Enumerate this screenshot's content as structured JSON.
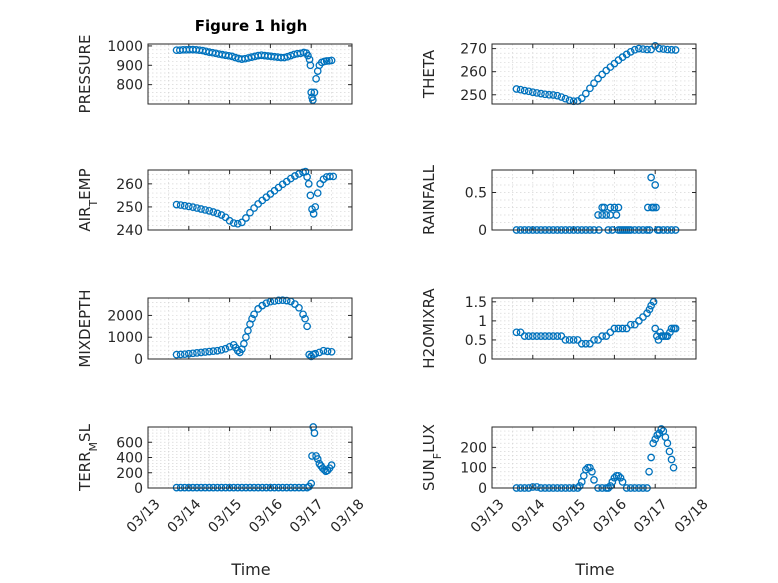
{
  "figure": {
    "title": "Figure 1 high",
    "xlabel": "Time"
  },
  "colors": {
    "series": "#0072bd",
    "axes": "#262626"
  },
  "chart_data": [
    {
      "type": "scatter",
      "id": "pressure",
      "ylabel": "PRESSURE",
      "title": "Figure 1 high",
      "ylim": [
        700,
        1010
      ],
      "yticks": [
        800,
        900,
        1000
      ],
      "yticklabels": [
        "800",
        "900",
        "1000"
      ],
      "xlim": [
        0,
        5
      ],
      "xticks": [
        0,
        1,
        2,
        3,
        4,
        5
      ],
      "xticklabels": [],
      "grid": true,
      "x": [
        0.7,
        0.78,
        0.86,
        0.94,
        1.02,
        1.1,
        1.18,
        1.26,
        1.34,
        1.42,
        1.5,
        1.58,
        1.66,
        1.74,
        1.82,
        1.9,
        1.98,
        2.06,
        2.14,
        2.22,
        2.3,
        2.38,
        2.46,
        2.54,
        2.62,
        2.7,
        2.78,
        2.86,
        2.94,
        3.02,
        3.1,
        3.18,
        3.26,
        3.34,
        3.42,
        3.5,
        3.58,
        3.66,
        3.74,
        3.82,
        3.88,
        3.92,
        3.96,
        3.98,
        4.0,
        4.02,
        4.04,
        4.08,
        4.12,
        4.16,
        4.2,
        4.26,
        4.32,
        4.38,
        4.44,
        4.5
      ],
      "y": [
        978,
        978,
        980,
        980,
        981,
        981,
        980,
        978,
        976,
        972,
        968,
        965,
        962,
        958,
        955,
        952,
        949,
        946,
        940,
        935,
        932,
        934,
        938,
        942,
        946,
        950,
        952,
        950,
        948,
        946,
        944,
        942,
        940,
        940,
        944,
        950,
        956,
        960,
        962,
        966,
        963,
        950,
        930,
        900,
        760,
        735,
        720,
        760,
        830,
        870,
        900,
        915,
        920,
        922,
        923,
        925
      ]
    },
    {
      "type": "scatter",
      "id": "theta",
      "ylabel": "THETA",
      "ylim": [
        246,
        272
      ],
      "yticks": [
        250,
        260,
        270
      ],
      "yticklabels": [
        "250",
        "260",
        "270"
      ],
      "xlim": [
        0,
        5
      ],
      "xticks": [
        0,
        1,
        2,
        3,
        4,
        5
      ],
      "xticklabels": [],
      "grid": true,
      "x": [
        0.6,
        0.7,
        0.8,
        0.9,
        1.0,
        1.1,
        1.2,
        1.3,
        1.4,
        1.5,
        1.6,
        1.7,
        1.8,
        1.9,
        2.0,
        2.1,
        2.2,
        2.3,
        2.4,
        2.5,
        2.6,
        2.7,
        2.8,
        2.9,
        3.0,
        3.1,
        3.2,
        3.3,
        3.4,
        3.5,
        3.6,
        3.7,
        3.8,
        3.9,
        4.0,
        4.1,
        4.2,
        4.3,
        4.4,
        4.5
      ],
      "y": [
        252.5,
        252.2,
        251.8,
        251.5,
        251.1,
        250.8,
        250.5,
        250.2,
        250.0,
        249.9,
        249.6,
        249.0,
        248.3,
        247.6,
        247.2,
        247.3,
        248.5,
        250.5,
        252.8,
        255.0,
        257.0,
        258.8,
        260.5,
        262.0,
        263.5,
        265.0,
        266.3,
        267.5,
        268.6,
        269.5,
        270.0,
        269.8,
        269.6,
        269.6,
        271.2,
        270.0,
        269.8,
        269.6,
        269.5,
        269.4
      ]
    },
    {
      "type": "scatter",
      "id": "air-temp",
      "ylabel": "AIR_TEMP",
      "ylim": [
        240,
        266
      ],
      "yticks": [
        240,
        250,
        260
      ],
      "yticklabels": [
        "240",
        "250",
        "260"
      ],
      "xlim": [
        0,
        5
      ],
      "xticks": [
        0,
        1,
        2,
        3,
        4,
        5
      ],
      "xticklabels": [],
      "grid": true,
      "x": [
        0.7,
        0.8,
        0.9,
        1.0,
        1.1,
        1.2,
        1.3,
        1.4,
        1.5,
        1.6,
        1.7,
        1.8,
        1.9,
        2.0,
        2.1,
        2.2,
        2.3,
        2.4,
        2.5,
        2.6,
        2.7,
        2.8,
        2.9,
        3.0,
        3.1,
        3.2,
        3.3,
        3.4,
        3.5,
        3.6,
        3.7,
        3.8,
        3.86,
        3.9,
        3.94,
        3.98,
        4.02,
        4.06,
        4.1,
        4.16,
        4.22,
        4.3,
        4.38,
        4.46,
        4.54
      ],
      "y": [
        251,
        250.8,
        250.5,
        250.2,
        249.9,
        249.5,
        249.1,
        248.7,
        248.3,
        247.8,
        247.2,
        246.5,
        245.5,
        244.0,
        243.0,
        242.7,
        243.3,
        245.2,
        247.5,
        249.5,
        251.3,
        252.8,
        254.2,
        255.6,
        257.0,
        258.4,
        259.8,
        261.0,
        262.3,
        263.4,
        264.3,
        265.0,
        265.3,
        263,
        260,
        255,
        249,
        247,
        250,
        256,
        260,
        262,
        263,
        263.2,
        263.2
      ]
    },
    {
      "type": "scatter",
      "id": "rainfall",
      "ylabel": "RAINFALL",
      "ylim": [
        0,
        0.8
      ],
      "yticks": [
        0,
        0.5
      ],
      "yticklabels": [
        "0",
        "0.5"
      ],
      "xlim": [
        0,
        5
      ],
      "xticks": [
        0,
        1,
        2,
        3,
        4,
        5
      ],
      "xticklabels": [],
      "grid": true,
      "x": [
        0.6,
        0.7,
        0.8,
        0.9,
        1.0,
        1.1,
        1.2,
        1.3,
        1.4,
        1.5,
        1.6,
        1.7,
        1.8,
        1.9,
        2.0,
        2.1,
        2.2,
        2.3,
        2.4,
        2.5,
        2.6,
        2.62,
        2.7,
        2.7,
        2.75,
        2.8,
        2.85,
        2.9,
        2.9,
        2.95,
        3.0,
        3.05,
        3.1,
        3.1,
        3.15,
        3.2,
        3.25,
        3.3,
        3.35,
        3.4,
        3.5,
        3.6,
        3.7,
        3.8,
        3.82,
        3.86,
        3.9,
        3.92,
        3.96,
        4.0,
        4.02,
        4.06,
        4.1,
        4.2,
        4.3,
        4.4,
        4.5
      ],
      "y": [
        0,
        0,
        0,
        0,
        0,
        0,
        0,
        0,
        0,
        0,
        0,
        0,
        0,
        0,
        0,
        0,
        0,
        0,
        0,
        0,
        0.2,
        0,
        0.3,
        0.2,
        0.3,
        0.2,
        0,
        0.3,
        0.2,
        0,
        0.3,
        0.2,
        0,
        0.3,
        0,
        0,
        0,
        0,
        0,
        0,
        0,
        0,
        0,
        0,
        0.3,
        0,
        0.7,
        0.3,
        0.3,
        0.6,
        0.3,
        0,
        0,
        0,
        0,
        0,
        0
      ]
    },
    {
      "type": "scatter",
      "id": "mixdepth",
      "ylabel": "MIXDEPTH",
      "ylim": [
        0,
        2800
      ],
      "yticks": [
        0,
        1000,
        2000
      ],
      "yticklabels": [
        "0",
        "1000",
        "2000"
      ],
      "xlim": [
        0,
        5
      ],
      "xticks": [
        0,
        1,
        2,
        3,
        4,
        5
      ],
      "xticklabels": [],
      "grid": true,
      "x": [
        0.7,
        0.8,
        0.9,
        1.0,
        1.1,
        1.2,
        1.3,
        1.4,
        1.5,
        1.6,
        1.7,
        1.8,
        1.9,
        2.0,
        2.1,
        2.15,
        2.2,
        2.25,
        2.3,
        2.35,
        2.4,
        2.45,
        2.5,
        2.55,
        2.6,
        2.7,
        2.8,
        2.9,
        3.0,
        3.1,
        3.2,
        3.3,
        3.4,
        3.5,
        3.6,
        3.7,
        3.8,
        3.85,
        3.9,
        3.95,
        4.0,
        4.05,
        4.1,
        4.2,
        4.3,
        4.4,
        4.5
      ],
      "y": [
        200,
        210,
        220,
        240,
        260,
        280,
        300,
        320,
        340,
        360,
        380,
        420,
        470,
        560,
        650,
        520,
        380,
        300,
        450,
        700,
        1000,
        1300,
        1600,
        1850,
        2050,
        2300,
        2450,
        2560,
        2630,
        2660,
        2690,
        2700,
        2680,
        2640,
        2520,
        2350,
        2050,
        1850,
        1500,
        200,
        120,
        200,
        240,
        300,
        380,
        350,
        330
      ]
    },
    {
      "type": "scatter",
      "id": "h2omixra",
      "ylabel": "H2OMIXRA",
      "ylim": [
        0,
        1.6
      ],
      "yticks": [
        0,
        0.5,
        1,
        1.5
      ],
      "yticklabels": [
        "0",
        "0.5",
        "1",
        "1.5"
      ],
      "xlim": [
        0,
        5
      ],
      "xticks": [
        0,
        1,
        2,
        3,
        4,
        5
      ],
      "xticklabels": [],
      "grid": true,
      "x": [
        0.6,
        0.7,
        0.8,
        0.9,
        1.0,
        1.1,
        1.2,
        1.3,
        1.4,
        1.5,
        1.6,
        1.7,
        1.8,
        1.9,
        2.0,
        2.1,
        2.2,
        2.3,
        2.4,
        2.5,
        2.6,
        2.7,
        2.8,
        2.9,
        3.0,
        3.1,
        3.2,
        3.3,
        3.4,
        3.5,
        3.6,
        3.7,
        3.8,
        3.86,
        3.9,
        3.96,
        4.0,
        4.04,
        4.08,
        4.12,
        4.16,
        4.2,
        4.26,
        4.3,
        4.36,
        4.4,
        4.46,
        4.5
      ],
      "y": [
        0.7,
        0.7,
        0.6,
        0.6,
        0.6,
        0.6,
        0.6,
        0.6,
        0.6,
        0.6,
        0.6,
        0.6,
        0.5,
        0.5,
        0.5,
        0.5,
        0.4,
        0.4,
        0.4,
        0.5,
        0.5,
        0.6,
        0.6,
        0.7,
        0.8,
        0.8,
        0.8,
        0.8,
        0.9,
        0.9,
        1.0,
        1.1,
        1.2,
        1.3,
        1.4,
        1.5,
        0.8,
        0.6,
        0.5,
        0.7,
        0.6,
        0.6,
        0.6,
        0.6,
        0.7,
        0.8,
        0.8,
        0.8
      ]
    },
    {
      "type": "scatter",
      "id": "terr-msl",
      "ylabel": "TERR_MSL",
      "ylim": [
        0,
        800
      ],
      "yticks": [
        0,
        200,
        400,
        600
      ],
      "yticklabels": [
        "0",
        "200",
        "400",
        "600"
      ],
      "xlim": [
        0,
        5
      ],
      "xticks": [
        0,
        1,
        2,
        3,
        4,
        5
      ],
      "xticklabels": [
        "03/13",
        "03/14",
        "03/15",
        "03/16",
        "03/17",
        "03/18"
      ],
      "grid": true,
      "x": [
        0.7,
        0.8,
        0.9,
        1.0,
        1.1,
        1.2,
        1.3,
        1.4,
        1.5,
        1.6,
        1.7,
        1.8,
        1.9,
        2.0,
        2.1,
        2.2,
        2.3,
        2.4,
        2.5,
        2.6,
        2.7,
        2.8,
        2.9,
        3.0,
        3.1,
        3.2,
        3.3,
        3.4,
        3.5,
        3.6,
        3.7,
        3.8,
        3.9,
        3.95,
        4.0,
        4.02,
        4.05,
        4.08,
        4.12,
        4.16,
        4.2,
        4.24,
        4.28,
        4.32,
        4.36,
        4.4,
        4.45,
        4.5
      ],
      "y": [
        5,
        5,
        5,
        5,
        5,
        5,
        5,
        5,
        5,
        5,
        5,
        5,
        5,
        5,
        5,
        5,
        5,
        5,
        5,
        5,
        5,
        5,
        5,
        5,
        5,
        5,
        5,
        5,
        5,
        5,
        5,
        5,
        5,
        20,
        60,
        420,
        800,
        720,
        420,
        380,
        320,
        290,
        260,
        240,
        220,
        230,
        260,
        300
      ]
    },
    {
      "type": "scatter",
      "id": "sun-flux",
      "ylabel": "SUN_FLUX",
      "ylim": [
        0,
        300
      ],
      "yticks": [
        0,
        100,
        200
      ],
      "yticklabels": [
        "0",
        "100",
        "200"
      ],
      "xlim": [
        0,
        5
      ],
      "xticks": [
        0,
        1,
        2,
        3,
        4,
        5
      ],
      "xticklabels": [
        "03/13",
        "03/14",
        "03/15",
        "03/16",
        "03/17",
        "03/18"
      ],
      "grid": true,
      "x": [
        0.6,
        0.7,
        0.8,
        0.9,
        1.0,
        1.1,
        1.2,
        1.3,
        1.4,
        1.5,
        1.6,
        1.7,
        1.8,
        1.9,
        2.0,
        2.1,
        2.15,
        2.2,
        2.25,
        2.3,
        2.35,
        2.4,
        2.45,
        2.5,
        2.6,
        2.7,
        2.8,
        2.85,
        2.9,
        2.95,
        3.0,
        3.05,
        3.1,
        3.15,
        3.2,
        3.3,
        3.4,
        3.5,
        3.6,
        3.7,
        3.8,
        3.85,
        3.9,
        3.95,
        4.0,
        4.05,
        4.1,
        4.15,
        4.2,
        4.25,
        4.3,
        4.35,
        4.4,
        4.45
      ],
      "y": [
        0,
        0,
        0,
        0,
        5,
        5,
        0,
        0,
        0,
        0,
        0,
        0,
        0,
        0,
        0,
        0,
        10,
        30,
        60,
        90,
        100,
        100,
        80,
        40,
        0,
        0,
        0,
        0,
        10,
        30,
        50,
        60,
        60,
        50,
        30,
        0,
        0,
        0,
        0,
        0,
        0,
        80,
        150,
        220,
        240,
        260,
        270,
        290,
        280,
        250,
        220,
        180,
        140,
        100
      ]
    }
  ]
}
